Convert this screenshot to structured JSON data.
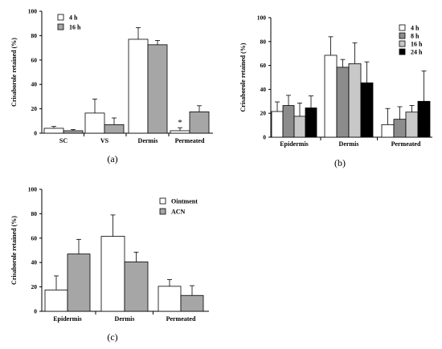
{
  "chart_data": [
    {
      "panel_label": "(a)",
      "type": "bar",
      "ylabel": "Crisaborole retained (%)",
      "ylim": [
        0,
        100
      ],
      "yticks": [
        "0",
        "20",
        "40",
        "60",
        "80",
        "100"
      ],
      "categories": [
        "SC",
        "VS",
        "Dermis",
        "Permeated"
      ],
      "legend_position": "top-left",
      "series": [
        {
          "name": "4 h",
          "color": "#ffffff",
          "values": [
            4,
            16.5,
            77,
            2
          ],
          "errors": [
            1.5,
            11.5,
            9.5,
            2.5
          ]
        },
        {
          "name": "16 h",
          "color": "#a6a6a6",
          "values": [
            2,
            7,
            72.5,
            17.5
          ],
          "errors": [
            1,
            5.5,
            3.5,
            5
          ]
        }
      ],
      "annotations": [
        {
          "text": "*",
          "category": "Permeated",
          "series": "4 h"
        }
      ]
    },
    {
      "panel_label": "(b)",
      "type": "bar",
      "ylabel": "Crisaborole retained (%)",
      "ylim": [
        0,
        100
      ],
      "yticks": [
        "0",
        "20",
        "40",
        "60",
        "80",
        "100"
      ],
      "categories": [
        "Epidermis",
        "Dermis",
        "Permeated"
      ],
      "legend_position": "top-right",
      "series": [
        {
          "name": "4 h",
          "color": "#ffffff",
          "values": [
            21.5,
            68.5,
            10.5
          ],
          "errors": [
            8,
            15.5,
            13.5
          ]
        },
        {
          "name": "8 h",
          "color": "#8c8c8c",
          "values": [
            26.5,
            58.5,
            15
          ],
          "errors": [
            8.5,
            6.5,
            10.5
          ]
        },
        {
          "name": "16 h",
          "color": "#c8c8c8",
          "values": [
            17.5,
            61.5,
            21
          ],
          "errors": [
            11,
            17.5,
            5.5
          ]
        },
        {
          "name": "24 h",
          "color": "#000000",
          "values": [
            24.5,
            45.5,
            30
          ],
          "errors": [
            10,
            17.5,
            25.5
          ]
        }
      ]
    },
    {
      "panel_label": "(c)",
      "type": "bar",
      "ylabel": "Crisaborole retained (%)",
      "ylim": [
        0,
        100
      ],
      "yticks": [
        "0",
        "20",
        "40",
        "60",
        "80",
        "100"
      ],
      "categories": [
        "Epidermis",
        "Dermis",
        "Permeated"
      ],
      "legend_position": "top-right",
      "series": [
        {
          "name": "Ointment",
          "color": "#ffffff",
          "values": [
            17.5,
            61.5,
            20.5
          ],
          "errors": [
            11.5,
            17.5,
            5.5
          ]
        },
        {
          "name": "ACN",
          "color": "#a6a6a6",
          "values": [
            47,
            40.5,
            13
          ],
          "errors": [
            12,
            8,
            8
          ]
        }
      ]
    }
  ]
}
